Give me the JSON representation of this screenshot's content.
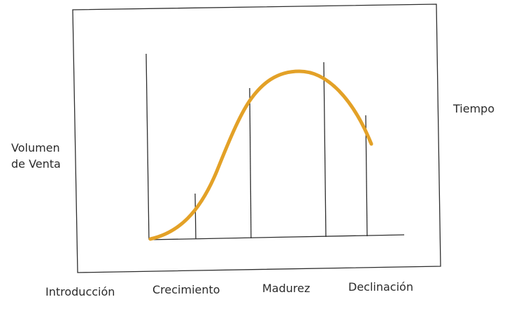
{
  "diagram": {
    "ylabel_line1": "Volumen",
    "ylabel_line2": "de Venta",
    "xlabel": "Tiempo",
    "stages": [
      "Introducción",
      "Crecimiento",
      "Madurez",
      "Declinación"
    ],
    "curve_color": "#E3A127",
    "line_color": "#2e2e2e"
  }
}
